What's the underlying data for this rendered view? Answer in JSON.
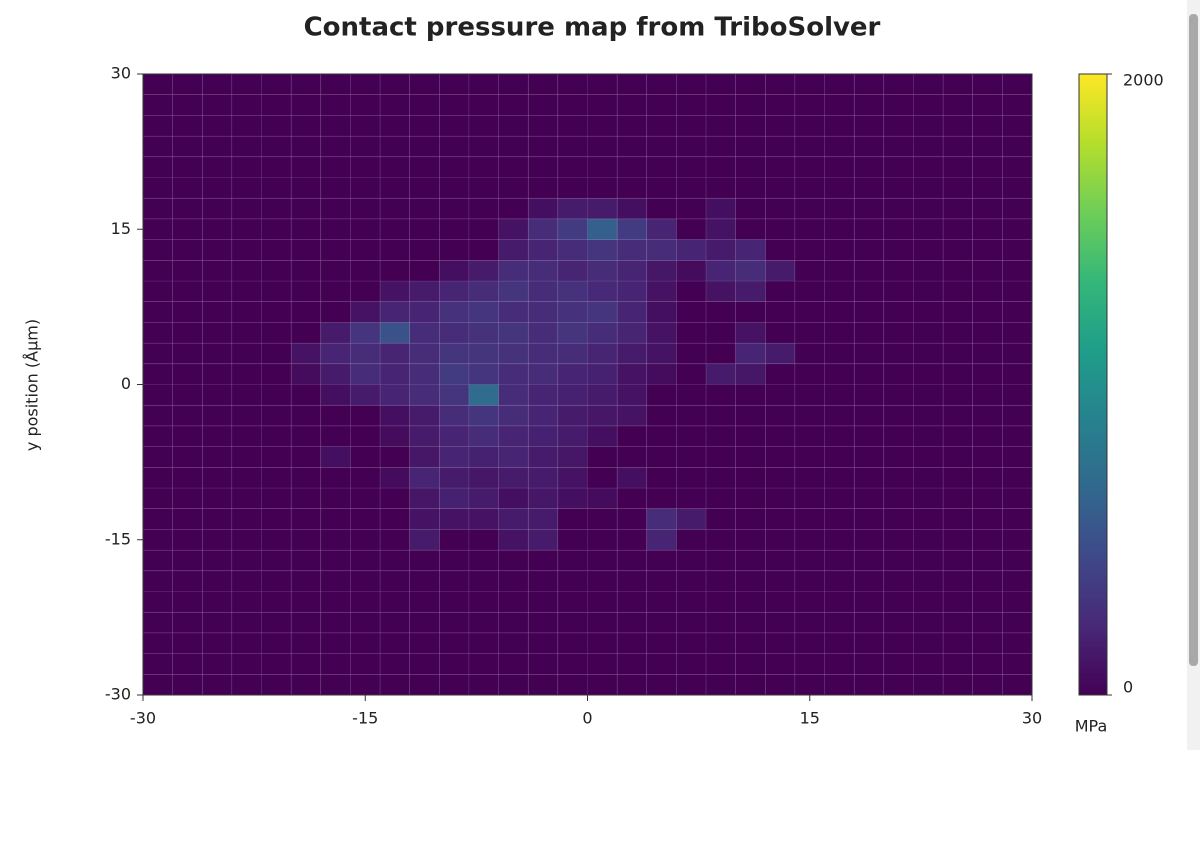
{
  "chart_data": {
    "type": "heatmap",
    "title": "Contact pressure map from TriboSolver",
    "y_label": "y position (Åµm)",
    "x": [
      -29,
      -27,
      -25,
      -23,
      -21,
      -19,
      -17,
      -15,
      -13,
      -11,
      -9,
      -7,
      -5,
      -3,
      -1,
      1,
      3,
      5,
      7,
      9,
      11,
      13,
      15,
      17,
      19,
      21,
      23,
      25,
      27,
      29
    ],
    "y": [
      -29,
      -27,
      -25,
      -23,
      -21,
      -19,
      -17,
      -15,
      -13,
      -11,
      -9,
      -7,
      -5,
      -3,
      -1,
      1,
      3,
      5,
      7,
      9,
      11,
      13,
      15,
      17,
      19,
      21,
      23,
      25,
      27,
      29
    ],
    "z": [
      [
        0,
        0,
        0,
        0,
        0,
        0,
        0,
        0,
        0,
        0,
        0,
        0,
        0,
        0,
        0,
        0,
        0,
        0,
        0,
        0,
        0,
        0,
        0,
        0,
        0,
        0,
        0,
        0,
        0,
        0
      ],
      [
        0,
        0,
        0,
        0,
        0,
        0,
        0,
        0,
        0,
        0,
        0,
        0,
        0,
        0,
        0,
        0,
        0,
        0,
        0,
        0,
        0,
        0,
        0,
        0,
        0,
        0,
        0,
        0,
        0,
        0
      ],
      [
        0,
        0,
        0,
        0,
        0,
        0,
        0,
        0,
        0,
        0,
        0,
        0,
        0,
        0,
        0,
        0,
        0,
        0,
        0,
        0,
        0,
        0,
        0,
        0,
        0,
        0,
        0,
        0,
        0,
        0
      ],
      [
        0,
        0,
        0,
        0,
        0,
        0,
        0,
        0,
        0,
        0,
        0,
        0,
        0,
        0,
        0,
        0,
        0,
        0,
        0,
        0,
        0,
        0,
        0,
        0,
        0,
        0,
        0,
        0,
        0,
        0
      ],
      [
        0,
        0,
        0,
        0,
        0,
        0,
        0,
        0,
        0,
        0,
        0,
        0,
        0,
        0,
        0,
        0,
        0,
        0,
        0,
        0,
        0,
        0,
        0,
        0,
        0,
        0,
        0,
        0,
        0,
        0
      ],
      [
        0,
        0,
        0,
        0,
        0,
        0,
        0,
        0,
        0,
        0,
        0,
        0,
        0,
        0,
        0,
        0,
        0,
        0,
        0,
        0,
        0,
        0,
        0,
        0,
        0,
        0,
        0,
        0,
        0,
        0
      ],
      [
        0,
        0,
        0,
        0,
        0,
        0,
        0,
        0,
        0,
        0,
        0,
        0,
        0,
        0,
        0,
        0,
        0,
        0,
        0,
        0,
        0,
        0,
        0,
        0,
        0,
        0,
        0,
        0,
        0,
        0
      ],
      [
        0,
        0,
        0,
        0,
        0,
        0,
        0,
        0,
        0,
        150,
        0,
        0,
        100,
        150,
        0,
        0,
        0,
        200,
        0,
        0,
        0,
        0,
        0,
        0,
        0,
        0,
        0,
        0,
        0,
        0
      ],
      [
        0,
        0,
        0,
        0,
        0,
        0,
        0,
        0,
        0,
        100,
        100,
        100,
        150,
        150,
        0,
        0,
        0,
        250,
        150,
        0,
        0,
        0,
        0,
        0,
        0,
        0,
        0,
        0,
        0,
        0
      ],
      [
        0,
        0,
        0,
        0,
        0,
        0,
        0,
        0,
        0,
        120,
        180,
        150,
        80,
        120,
        80,
        60,
        0,
        0,
        0,
        0,
        0,
        0,
        0,
        0,
        0,
        0,
        0,
        0,
        0,
        0
      ],
      [
        0,
        0,
        0,
        0,
        0,
        0,
        0,
        0,
        60,
        200,
        150,
        120,
        150,
        150,
        100,
        0,
        80,
        0,
        0,
        0,
        0,
        0,
        0,
        0,
        0,
        0,
        0,
        0,
        0,
        0
      ],
      [
        0,
        0,
        0,
        0,
        0,
        0,
        80,
        0,
        0,
        120,
        200,
        180,
        200,
        150,
        120,
        0,
        0,
        0,
        0,
        0,
        0,
        0,
        0,
        0,
        0,
        0,
        0,
        0,
        0,
        0
      ],
      [
        0,
        0,
        0,
        0,
        0,
        0,
        0,
        0,
        60,
        150,
        200,
        250,
        200,
        180,
        150,
        80,
        0,
        0,
        0,
        0,
        0,
        0,
        0,
        0,
        0,
        0,
        0,
        0,
        0,
        0
      ],
      [
        0,
        0,
        0,
        0,
        0,
        0,
        0,
        0,
        80,
        150,
        250,
        300,
        250,
        200,
        150,
        120,
        100,
        0,
        0,
        0,
        0,
        0,
        0,
        0,
        0,
        0,
        0,
        0,
        0,
        0
      ],
      [
        0,
        0,
        0,
        0,
        0,
        0,
        80,
        150,
        200,
        250,
        300,
        700,
        250,
        200,
        180,
        150,
        100,
        0,
        0,
        0,
        0,
        0,
        0,
        0,
        0,
        0,
        0,
        0,
        0,
        0
      ],
      [
        0,
        0,
        0,
        0,
        0,
        60,
        150,
        250,
        200,
        250,
        350,
        300,
        250,
        250,
        200,
        180,
        100,
        60,
        0,
        150,
        120,
        0,
        0,
        0,
        0,
        0,
        0,
        0,
        0,
        0
      ],
      [
        0,
        0,
        0,
        0,
        0,
        100,
        200,
        250,
        200,
        250,
        300,
        300,
        280,
        250,
        250,
        200,
        150,
        100,
        0,
        0,
        200,
        150,
        0,
        0,
        0,
        0,
        0,
        0,
        0,
        0
      ],
      [
        0,
        0,
        0,
        0,
        0,
        0,
        150,
        300,
        500,
        250,
        250,
        280,
        300,
        250,
        300,
        250,
        200,
        100,
        0,
        0,
        100,
        0,
        0,
        0,
        0,
        0,
        0,
        0,
        0,
        0
      ],
      [
        0,
        0,
        0,
        0,
        0,
        0,
        0,
        100,
        200,
        200,
        280,
        300,
        250,
        250,
        280,
        300,
        200,
        80,
        0,
        0,
        0,
        0,
        0,
        0,
        0,
        0,
        0,
        0,
        0,
        0
      ],
      [
        0,
        0,
        0,
        0,
        0,
        0,
        0,
        0,
        100,
        150,
        200,
        250,
        300,
        250,
        280,
        220,
        200,
        100,
        0,
        100,
        150,
        0,
        0,
        0,
        0,
        0,
        0,
        0,
        0,
        0
      ],
      [
        0,
        0,
        0,
        0,
        0,
        0,
        0,
        0,
        0,
        0,
        80,
        150,
        250,
        250,
        200,
        250,
        200,
        120,
        60,
        200,
        250,
        150,
        0,
        0,
        0,
        0,
        0,
        0,
        0,
        0
      ],
      [
        0,
        0,
        0,
        0,
        0,
        0,
        0,
        0,
        0,
        0,
        0,
        0,
        150,
        200,
        250,
        300,
        250,
        250,
        200,
        150,
        200,
        0,
        0,
        0,
        0,
        0,
        0,
        0,
        0,
        0
      ],
      [
        0,
        0,
        0,
        0,
        0,
        0,
        0,
        0,
        0,
        0,
        0,
        0,
        100,
        250,
        350,
        600,
        350,
        200,
        0,
        100,
        0,
        0,
        0,
        0,
        0,
        0,
        0,
        0,
        0,
        0
      ],
      [
        0,
        0,
        0,
        0,
        0,
        0,
        0,
        0,
        0,
        0,
        0,
        0,
        0,
        80,
        150,
        150,
        80,
        0,
        0,
        80,
        0,
        0,
        0,
        0,
        0,
        0,
        0,
        0,
        0,
        0
      ],
      [
        0,
        0,
        0,
        0,
        0,
        0,
        0,
        0,
        0,
        0,
        0,
        0,
        0,
        0,
        0,
        0,
        0,
        0,
        0,
        0,
        0,
        0,
        0,
        0,
        0,
        0,
        0,
        0,
        0,
        0
      ],
      [
        0,
        0,
        0,
        0,
        0,
        0,
        0,
        0,
        0,
        0,
        0,
        0,
        0,
        0,
        0,
        0,
        0,
        0,
        0,
        0,
        0,
        0,
        0,
        0,
        0,
        0,
        0,
        0,
        0,
        0
      ],
      [
        0,
        0,
        0,
        0,
        0,
        0,
        0,
        0,
        0,
        0,
        0,
        0,
        0,
        0,
        0,
        0,
        0,
        0,
        0,
        0,
        0,
        0,
        0,
        0,
        0,
        0,
        0,
        0,
        0,
        0
      ],
      [
        0,
        0,
        0,
        0,
        0,
        0,
        0,
        0,
        0,
        0,
        0,
        0,
        0,
        0,
        0,
        0,
        0,
        0,
        0,
        0,
        0,
        0,
        0,
        0,
        0,
        0,
        0,
        0,
        0,
        0
      ],
      [
        0,
        0,
        0,
        0,
        0,
        0,
        0,
        0,
        0,
        0,
        0,
        0,
        0,
        0,
        0,
        0,
        0,
        0,
        0,
        0,
        0,
        0,
        0,
        0,
        0,
        0,
        0,
        0,
        0,
        0
      ],
      [
        0,
        0,
        0,
        0,
        0,
        0,
        0,
        0,
        0,
        0,
        0,
        0,
        0,
        0,
        0,
        0,
        0,
        0,
        0,
        0,
        0,
        0,
        0,
        0,
        0,
        0,
        0,
        0,
        0,
        0
      ]
    ],
    "xlim": [
      -30,
      30
    ],
    "ylim": [
      -30,
      30
    ],
    "xticks": [
      -30,
      -15,
      0,
      15,
      30
    ],
    "yticks": [
      -30,
      -15,
      0,
      15,
      30
    ],
    "zlim": [
      0,
      2000
    ],
    "zticks": [
      0,
      2000
    ],
    "colorbar_label": "MPa",
    "colorscale": [
      "#440154",
      "#482878",
      "#3e4989",
      "#31688e",
      "#26828e",
      "#1f9e89",
      "#35b779",
      "#6ece58",
      "#b5de2b",
      "#fde725"
    ]
  }
}
